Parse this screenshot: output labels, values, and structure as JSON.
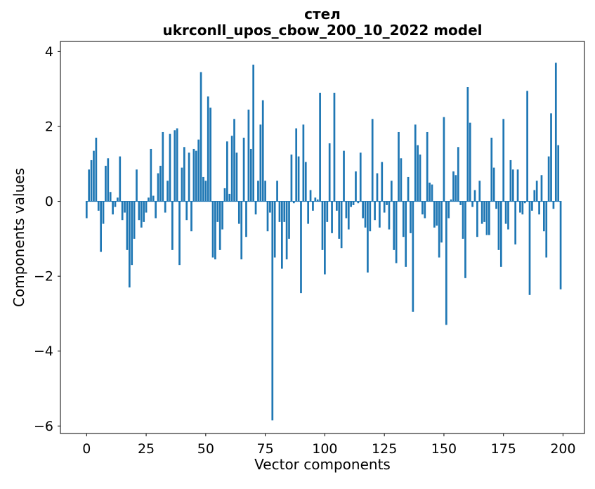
{
  "figure": {
    "title_line1": "стел",
    "title_line2": "ukrconll_upos_cbow_200_10_2022 model"
  },
  "chart_data": {
    "type": "bar",
    "title": "стел — ukrconll_upos_cbow_200_10_2022 model",
    "xlabel": "Vector components",
    "ylabel": "Components values",
    "x_start": 0,
    "x_step": 1,
    "n_components": 200,
    "bar_color": "#1f77b4",
    "bar_width": 0.8,
    "grid": false,
    "legend": null,
    "xlim": [
      -11,
      209
    ],
    "ylim": [
      -6.2,
      4.27
    ],
    "x_ticks": [
      0,
      25,
      50,
      75,
      100,
      125,
      150,
      175,
      200
    ],
    "y_ticks": [
      4,
      2,
      0,
      -2,
      -4,
      -6
    ],
    "y_tick_labels": [
      "4",
      "2",
      "0",
      "−2",
      "−4",
      "−6"
    ],
    "values": [
      -0.45,
      0.85,
      1.1,
      1.35,
      1.7,
      -0.25,
      -1.35,
      -0.6,
      0.95,
      1.15,
      0.25,
      -0.35,
      -0.15,
      0.1,
      1.2,
      -0.5,
      -0.3,
      -1.3,
      -2.3,
      -1.7,
      -1.0,
      0.85,
      -0.5,
      -0.7,
      -0.55,
      -0.3,
      0.1,
      1.4,
      0.15,
      -0.45,
      0.75,
      0.95,
      1.85,
      -0.3,
      0.55,
      1.8,
      -1.3,
      1.9,
      1.95,
      -1.7,
      0.9,
      1.45,
      -0.5,
      1.3,
      -0.8,
      1.4,
      1.35,
      1.65,
      3.45,
      0.65,
      0.55,
      2.8,
      2.5,
      -1.5,
      -1.55,
      -0.55,
      -1.3,
      -0.75,
      0.35,
      1.6,
      0.2,
      1.75,
      2.2,
      1.3,
      -0.6,
      -1.55,
      1.7,
      -0.95,
      2.45,
      1.4,
      3.65,
      -0.35,
      0.55,
      2.05,
      2.7,
      0.55,
      -0.8,
      -0.3,
      -5.85,
      -1.5,
      0.55,
      -0.55,
      -1.8,
      -0.55,
      -1.55,
      -1.0,
      1.25,
      -0.05,
      1.95,
      1.2,
      -2.45,
      2.05,
      1.05,
      -0.6,
      0.3,
      -0.25,
      0.1,
      0.05,
      2.9,
      -1.3,
      -1.95,
      -0.55,
      1.55,
      -0.85,
      2.9,
      -0.25,
      -1.0,
      -1.25,
      1.35,
      -0.45,
      -0.75,
      -0.15,
      -0.1,
      0.8,
      -0.05,
      1.3,
      -0.45,
      -0.7,
      -1.9,
      -0.8,
      2.2,
      -0.5,
      0.75,
      -0.7,
      1.05,
      -0.3,
      -0.1,
      -0.75,
      0.55,
      -1.3,
      -1.65,
      1.85,
      1.15,
      -0.95,
      -1.75,
      0.65,
      -0.85,
      -2.95,
      2.05,
      1.5,
      1.25,
      -0.35,
      -0.45,
      1.85,
      0.5,
      0.45,
      -0.7,
      -0.65,
      -1.5,
      -1.1,
      2.25,
      -3.3,
      -0.45,
      0.05,
      0.8,
      0.7,
      1.45,
      -0.1,
      -1.0,
      -2.05,
      3.05,
      2.1,
      -0.15,
      0.3,
      -0.95,
      0.55,
      -0.6,
      -0.55,
      -0.9,
      -0.9,
      1.7,
      0.9,
      -0.2,
      -1.3,
      -1.75,
      2.2,
      -0.6,
      -0.75,
      1.1,
      0.85,
      -1.15,
      0.85,
      -0.3,
      -0.35,
      -0.05,
      2.95,
      -2.5,
      -0.25,
      0.3,
      0.55,
      -0.35,
      0.7,
      -0.8,
      -1.5,
      1.2,
      2.35,
      -0.2,
      3.7,
      1.5,
      -2.35
    ]
  }
}
